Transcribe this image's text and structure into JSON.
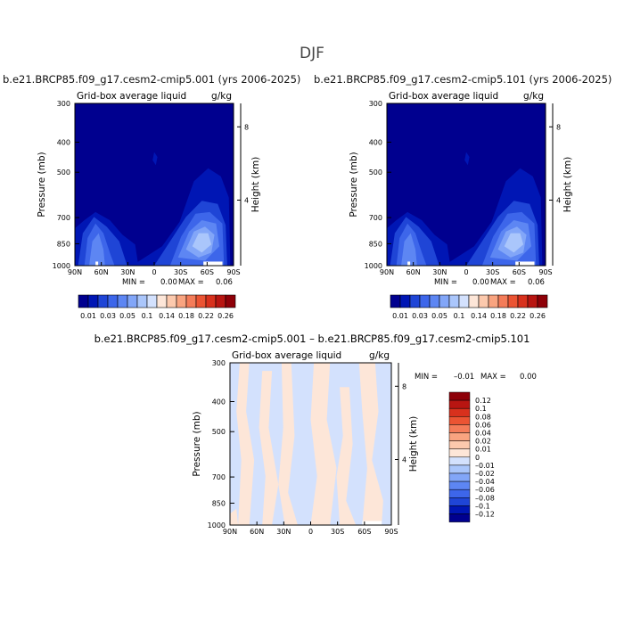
{
  "figure": {
    "title": "DJF"
  },
  "chart_data": [
    {
      "type": "heatmap",
      "title": "b.e21.BRCP85.f09_g17.cesm2-cmip5.001 (yrs 2006-2025)",
      "subtitle": "Grid-box average liquid",
      "units": "g/kg",
      "xlabel": "",
      "ylabel": "Pressure (mb)",
      "y2label": "Height (km)",
      "x_ticks": [
        "90N",
        "60N",
        "30N",
        "0",
        "30S",
        "60S",
        "90S"
      ],
      "y_ticks": [
        300,
        400,
        500,
        700,
        850,
        1000
      ],
      "y_scale": "log",
      "ylim": [
        1000,
        300
      ],
      "y2_ticks": [
        8,
        4
      ],
      "stats": {
        "min_label": "MIN =",
        "min_value": "0.00",
        "max_label": "MAX =",
        "max_value": "0.06"
      },
      "colorbar": {
        "levels": [
          "0.01",
          "0.03",
          "0.05",
          "0.1",
          "0.14",
          "0.18",
          "0.22",
          "0.26"
        ],
        "colors": [
          "#00008f",
          "#0016b4",
          "#1f45d6",
          "#3d66ea",
          "#5d86f3",
          "#82a6f8",
          "#aac6fb",
          "#d3e1fd",
          "#fde6d8",
          "#fcc9ad",
          "#f9a480",
          "#f47c59",
          "#eb5433",
          "#d8311d",
          "#b81511",
          "#8e0008"
        ]
      }
    },
    {
      "type": "heatmap",
      "title": "b.e21.BRCP85.f09_g17.cesm2-cmip5.101 (yrs 2006-2025)",
      "subtitle": "Grid-box average liquid",
      "units": "g/kg",
      "xlabel": "",
      "ylabel": "Pressure (mb)",
      "y2label": "Height (km)",
      "x_ticks": [
        "90N",
        "60N",
        "30N",
        "0",
        "30S",
        "60S",
        "90S"
      ],
      "y_ticks": [
        300,
        400,
        500,
        700,
        850,
        1000
      ],
      "y_scale": "log",
      "ylim": [
        1000,
        300
      ],
      "y2_ticks": [
        8,
        4
      ],
      "stats": {
        "min_label": "MIN =",
        "min_value": "0.00",
        "max_label": "MAX =",
        "max_value": "0.06"
      }
    },
    {
      "type": "heatmap",
      "title": "b.e21.BRCP85.f09_g17.cesm2-cmip5.001 – b.e21.BRCP85.f09_g17.cesm2-cmip5.101",
      "subtitle": "Grid-box average liquid",
      "units": "g/kg",
      "xlabel": "",
      "ylabel": "Pressure (mb)",
      "y2label": "Height (km)",
      "x_ticks": [
        "90N",
        "60N",
        "30N",
        "0",
        "30S",
        "60S",
        "90S"
      ],
      "y_ticks": [
        300,
        400,
        500,
        700,
        850,
        1000
      ],
      "y_scale": "log",
      "ylim": [
        1000,
        300
      ],
      "y2_ticks": [
        8,
        4
      ],
      "stats": {
        "min_label": "MIN =",
        "min_value": "–0.01",
        "max_label": "MAX =",
        "max_value": "0.00"
      },
      "colorbar": {
        "levels": [
          "0.12",
          "0.1",
          "0.08",
          "0.06",
          "0.04",
          "0.02",
          "0.01",
          "0",
          "–0.01",
          "–0.02",
          "–0.04",
          "–0.06",
          "–0.08",
          "–0.1",
          "–0.12"
        ],
        "colors": [
          "#8e0008",
          "#b81511",
          "#d8311d",
          "#eb5433",
          "#f47c59",
          "#f9a480",
          "#fcc9ad",
          "#fde6d8",
          "#d3e1fd",
          "#aac6fb",
          "#82a6f8",
          "#5d86f3",
          "#3d66ea",
          "#1f45d6",
          "#0016b4",
          "#00008f"
        ]
      }
    }
  ]
}
